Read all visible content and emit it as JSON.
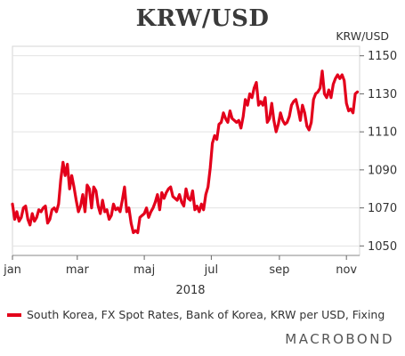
{
  "chart_data": {
    "type": "line",
    "title": "KRW/USD",
    "ylabel": "KRW/USD",
    "xlabel": "2018",
    "ylim": [
      1045,
      1155
    ],
    "yticks": [
      1050,
      1070,
      1090,
      1110,
      1130,
      1150
    ],
    "xlim": [
      1,
      317
    ],
    "xticks": [
      {
        "day": 1,
        "label": "jan"
      },
      {
        "day": 60,
        "label": "mar"
      },
      {
        "day": 121,
        "label": "maj"
      },
      {
        "day": 182,
        "label": "jul"
      },
      {
        "day": 244,
        "label": "sep"
      },
      {
        "day": 305,
        "label": "nov"
      }
    ],
    "grid": true,
    "legend_position": "bottom-left",
    "color": "#e3001b",
    "series": [
      {
        "name": "South Korea, FX Spot Rates, Bank of Korea, KRW per USD, Fixing",
        "x": [
          1,
          3,
          5,
          7,
          9,
          11,
          13,
          15,
          17,
          19,
          21,
          23,
          25,
          27,
          29,
          31,
          33,
          35,
          37,
          39,
          41,
          43,
          45,
          47,
          49,
          51,
          53,
          55,
          57,
          59,
          61,
          63,
          65,
          67,
          69,
          71,
          73,
          75,
          77,
          79,
          81,
          83,
          85,
          87,
          89,
          91,
          93,
          95,
          97,
          99,
          101,
          103,
          105,
          107,
          109,
          111,
          113,
          115,
          117,
          119,
          121,
          123,
          125,
          127,
          129,
          131,
          133,
          135,
          137,
          139,
          141,
          143,
          145,
          147,
          149,
          151,
          153,
          155,
          157,
          159,
          161,
          163,
          165,
          167,
          169,
          171,
          173,
          175,
          177,
          179,
          181,
          183,
          185,
          187,
          189,
          191,
          193,
          195,
          197,
          199,
          201,
          203,
          205,
          207,
          209,
          211,
          213,
          215,
          217,
          219,
          221,
          223,
          225,
          227,
          229,
          231,
          233,
          235,
          237,
          239,
          241,
          243,
          245,
          247,
          249,
          251,
          253,
          255,
          257,
          259,
          261,
          263,
          265,
          267,
          269,
          271,
          273,
          275,
          277,
          279,
          281,
          283,
          285,
          287,
          289,
          291,
          293,
          295,
          297,
          299,
          301,
          303,
          305,
          307,
          309,
          311,
          313,
          315
        ],
        "y": [
          1072,
          1064,
          1068,
          1063,
          1065,
          1070,
          1071,
          1064,
          1061,
          1067,
          1063,
          1065,
          1069,
          1068,
          1070,
          1071,
          1062,
          1064,
          1069,
          1070,
          1068,
          1072,
          1085,
          1094,
          1087,
          1093,
          1080,
          1087,
          1081,
          1074,
          1068,
          1071,
          1077,
          1068,
          1082,
          1080,
          1070,
          1081,
          1079,
          1071,
          1067,
          1074,
          1068,
          1069,
          1064,
          1066,
          1072,
          1069,
          1070,
          1068,
          1074,
          1081,
          1068,
          1070,
          1062,
          1057,
          1058,
          1057,
          1065,
          1066,
          1067,
          1070,
          1065,
          1068,
          1070,
          1073,
          1077,
          1069,
          1078,
          1075,
          1078,
          1080,
          1081,
          1076,
          1075,
          1074,
          1077,
          1073,
          1071,
          1080,
          1075,
          1074,
          1079,
          1069,
          1071,
          1068,
          1072,
          1069,
          1077,
          1081,
          1091,
          1104,
          1108,
          1106,
          1114,
          1115,
          1120,
          1117,
          1115,
          1121,
          1117,
          1116,
          1115,
          1116,
          1112,
          1118,
          1127,
          1124,
          1130,
          1128,
          1133,
          1136,
          1124,
          1126,
          1124,
          1128,
          1115,
          1117,
          1125,
          1116,
          1110,
          1114,
          1120,
          1116,
          1114,
          1115,
          1118,
          1124,
          1126,
          1127,
          1122,
          1116,
          1124,
          1120,
          1113,
          1111,
          1115,
          1127,
          1130,
          1131,
          1133,
          1142,
          1130,
          1128,
          1132,
          1128,
          1135,
          1138,
          1140,
          1138,
          1140,
          1137,
          1125,
          1121,
          1122,
          1120,
          1130,
          1131
        ]
      }
    ]
  },
  "legend": {
    "label": "South Korea, FX Spot Rates, Bank of Korea, KRW per USD, Fixing"
  },
  "branding": {
    "text": "MACROBOND"
  }
}
